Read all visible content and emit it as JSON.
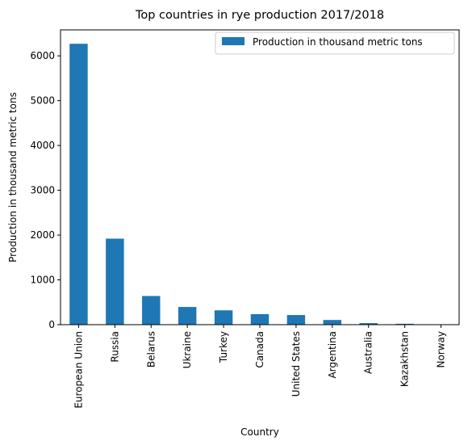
{
  "chart_data": {
    "type": "bar",
    "title": "Top countries in rye production 2017/2018",
    "xlabel": "Country",
    "ylabel": "Production in thousand metric tons",
    "categories": [
      "European Union",
      "Russia",
      "Belarus",
      "Ukraine",
      "Turkey",
      "Canada",
      "United States",
      "Argentina",
      "Australia",
      "Kazakhstan",
      "Norway"
    ],
    "series": [
      {
        "name": "Production in thousand metric tons",
        "values": [
          6270,
          1920,
          640,
          395,
          320,
          235,
          215,
          105,
          35,
          20,
          5
        ],
        "color": "#1f77b4"
      }
    ],
    "ylim": [
      0,
      6580
    ],
    "yticks": [
      0,
      1000,
      2000,
      3000,
      4000,
      5000,
      6000
    ],
    "grid": false,
    "legend_position": "top-right"
  }
}
